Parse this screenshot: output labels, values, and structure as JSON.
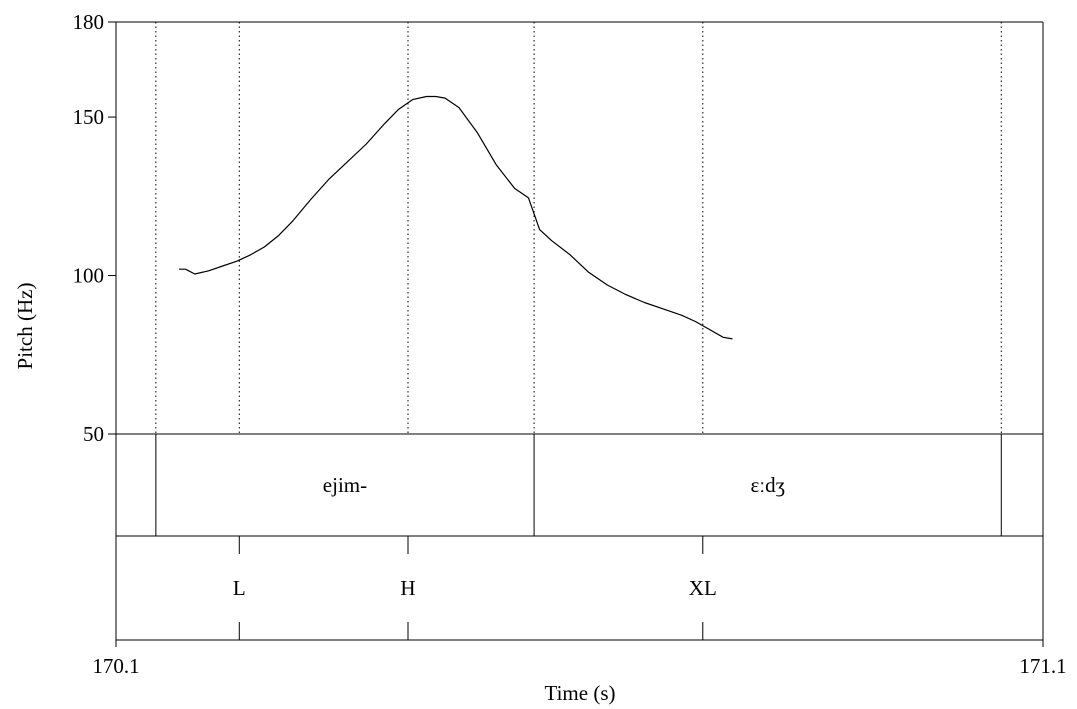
{
  "chart_data": {
    "type": "line",
    "xlabel": "Time (s)",
    "ylabel": "Pitch (Hz)",
    "xlim": [
      170.1,
      171.1
    ],
    "ylim": [
      50,
      180
    ],
    "x_tick_labels": [
      "170.1",
      "171.1"
    ],
    "y_ticks": [
      50,
      100,
      150,
      180
    ],
    "y_tick_labels": [
      "50",
      "100",
      "150",
      "180"
    ],
    "grid": false,
    "series": [
      {
        "x": [
          170.168,
          170.175,
          170.185,
          170.2,
          170.215,
          170.23,
          170.245,
          170.26,
          170.275,
          170.29,
          170.31,
          170.33,
          170.35,
          170.37,
          170.39,
          170.405,
          170.42,
          170.435,
          170.445,
          170.455,
          170.47,
          170.49,
          170.51,
          170.53,
          170.545,
          170.557,
          170.57,
          170.59,
          170.61,
          170.63,
          170.65,
          170.67,
          170.69,
          170.71,
          170.725,
          170.74,
          170.755,
          170.765
        ],
        "y": [
          102,
          102,
          100.5,
          101.5,
          103,
          104.5,
          106.5,
          109,
          112.5,
          117,
          124,
          130.5,
          136,
          141.5,
          148,
          152.5,
          155.5,
          156.5,
          156.5,
          156,
          153,
          145,
          135,
          127.5,
          124.5,
          114.5,
          111,
          106.5,
          101,
          97,
          94,
          91.5,
          89.5,
          87.5,
          85.5,
          83,
          80.5,
          80
        ]
      }
    ],
    "boundaries": [
      170.143,
      170.233,
      170.415,
      170.551,
      170.733,
      171.055
    ],
    "tiers": [
      {
        "intervals": [
          {
            "start": 170.143,
            "end": 170.551,
            "label": "ejim-"
          },
          {
            "start": 170.551,
            "end": 171.055,
            "label": "ɛːdʒ"
          }
        ]
      },
      {
        "points": [
          {
            "time": 170.233,
            "label": "L"
          },
          {
            "time": 170.415,
            "label": "H"
          },
          {
            "time": 170.733,
            "label": "XL"
          }
        ]
      }
    ]
  }
}
